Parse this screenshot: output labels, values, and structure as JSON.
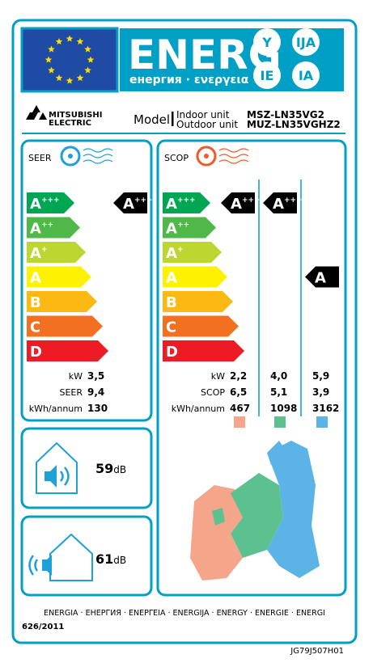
{
  "header": {
    "title": "ENERG",
    "subtitle": "енергия · ενεργεια",
    "badges": [
      "Y",
      "IJA",
      "IE",
      "IA"
    ]
  },
  "brand": {
    "name_line1": "MITSUBISHI",
    "name_line2": "ELECTRIC",
    "model_label": "Model",
    "indoor_label": "Indoor unit",
    "outdoor_label": "Outdoor unit",
    "indoor_model": "MSZ-LN35VG2",
    "outdoor_model": "MUZ-LN35VGHZ2"
  },
  "classes": [
    {
      "letter": "A",
      "sup": "+++",
      "color": "#00a651"
    },
    {
      "letter": "A",
      "sup": "++",
      "color": "#50b848"
    },
    {
      "letter": "A",
      "sup": "+",
      "color": "#bed630"
    },
    {
      "letter": "A",
      "color": "#fff200"
    },
    {
      "letter": "B",
      "color": "#fdb913"
    },
    {
      "letter": "C",
      "color": "#f37021"
    },
    {
      "letter": "D",
      "color": "#ed1c24"
    }
  ],
  "seer": {
    "label": "SEER",
    "rating": {
      "letter": "A",
      "sup": "+++"
    },
    "rows": [
      [
        "kW",
        "3,5"
      ],
      [
        "SEER",
        "9,4"
      ],
      [
        "kWh/annum",
        "130"
      ]
    ]
  },
  "scop": {
    "label": "SCOP",
    "ratings": [
      {
        "letter": "A",
        "sup": "+++"
      },
      {
        "letter": "A",
        "sup": "+++"
      },
      {
        "letter": "A"
      }
    ],
    "rows": [
      [
        "kW",
        "2,2",
        "4,0",
        "5,9"
      ],
      [
        "SCOP",
        "6,5",
        "5,1",
        "3,9"
      ],
      [
        "kWh/annum",
        "467",
        "1098",
        "3162"
      ]
    ],
    "zone_colors": [
      "#f4a58a",
      "#5cc08f",
      "#5bb4e5"
    ]
  },
  "noise": {
    "indoor": {
      "value": "59",
      "unit": "dB"
    },
    "outdoor": {
      "value": "61",
      "unit": "dB"
    }
  },
  "footer": {
    "languages": "ENERGIA · ЕНЕРГИЯ · ΕΝΕΡΓΕΙΑ · ENERGIJA · ENERGY · ENERGIE · ENERGI",
    "regulation": "626/2011",
    "code": "JG79J507H01"
  }
}
